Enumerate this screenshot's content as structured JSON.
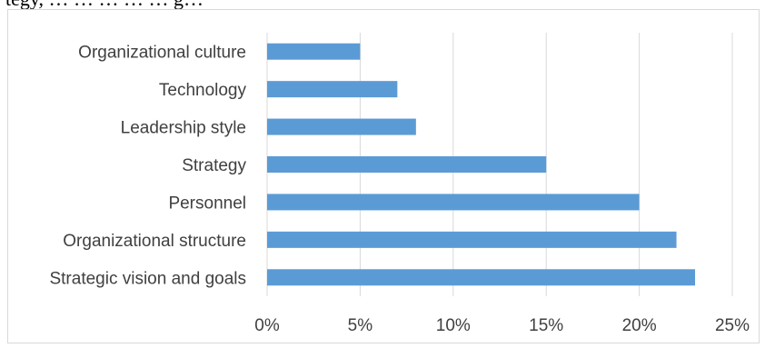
{
  "page": {
    "clipped_text": "tegy, … … … … … g…"
  },
  "chart_data": {
    "type": "bar",
    "orientation": "horizontal",
    "categories": [
      "Organizational culture",
      "Technology",
      "Leadership style",
      "Strategy",
      "Personnel",
      "Organizational structure",
      "Strategic vision and goals"
    ],
    "values": [
      5,
      7,
      8,
      15,
      20,
      22,
      23
    ],
    "value_unit": "%",
    "xlim": [
      0,
      25
    ],
    "x_ticks": [
      0,
      5,
      10,
      15,
      20,
      25
    ],
    "x_tick_labels": [
      "0%",
      "5%",
      "10%",
      "15%",
      "20%",
      "25%"
    ],
    "grid": "vertical",
    "bar_color": "#5b9bd5",
    "grid_color": "#d9d9d9",
    "title": "",
    "xlabel": "",
    "ylabel": ""
  }
}
